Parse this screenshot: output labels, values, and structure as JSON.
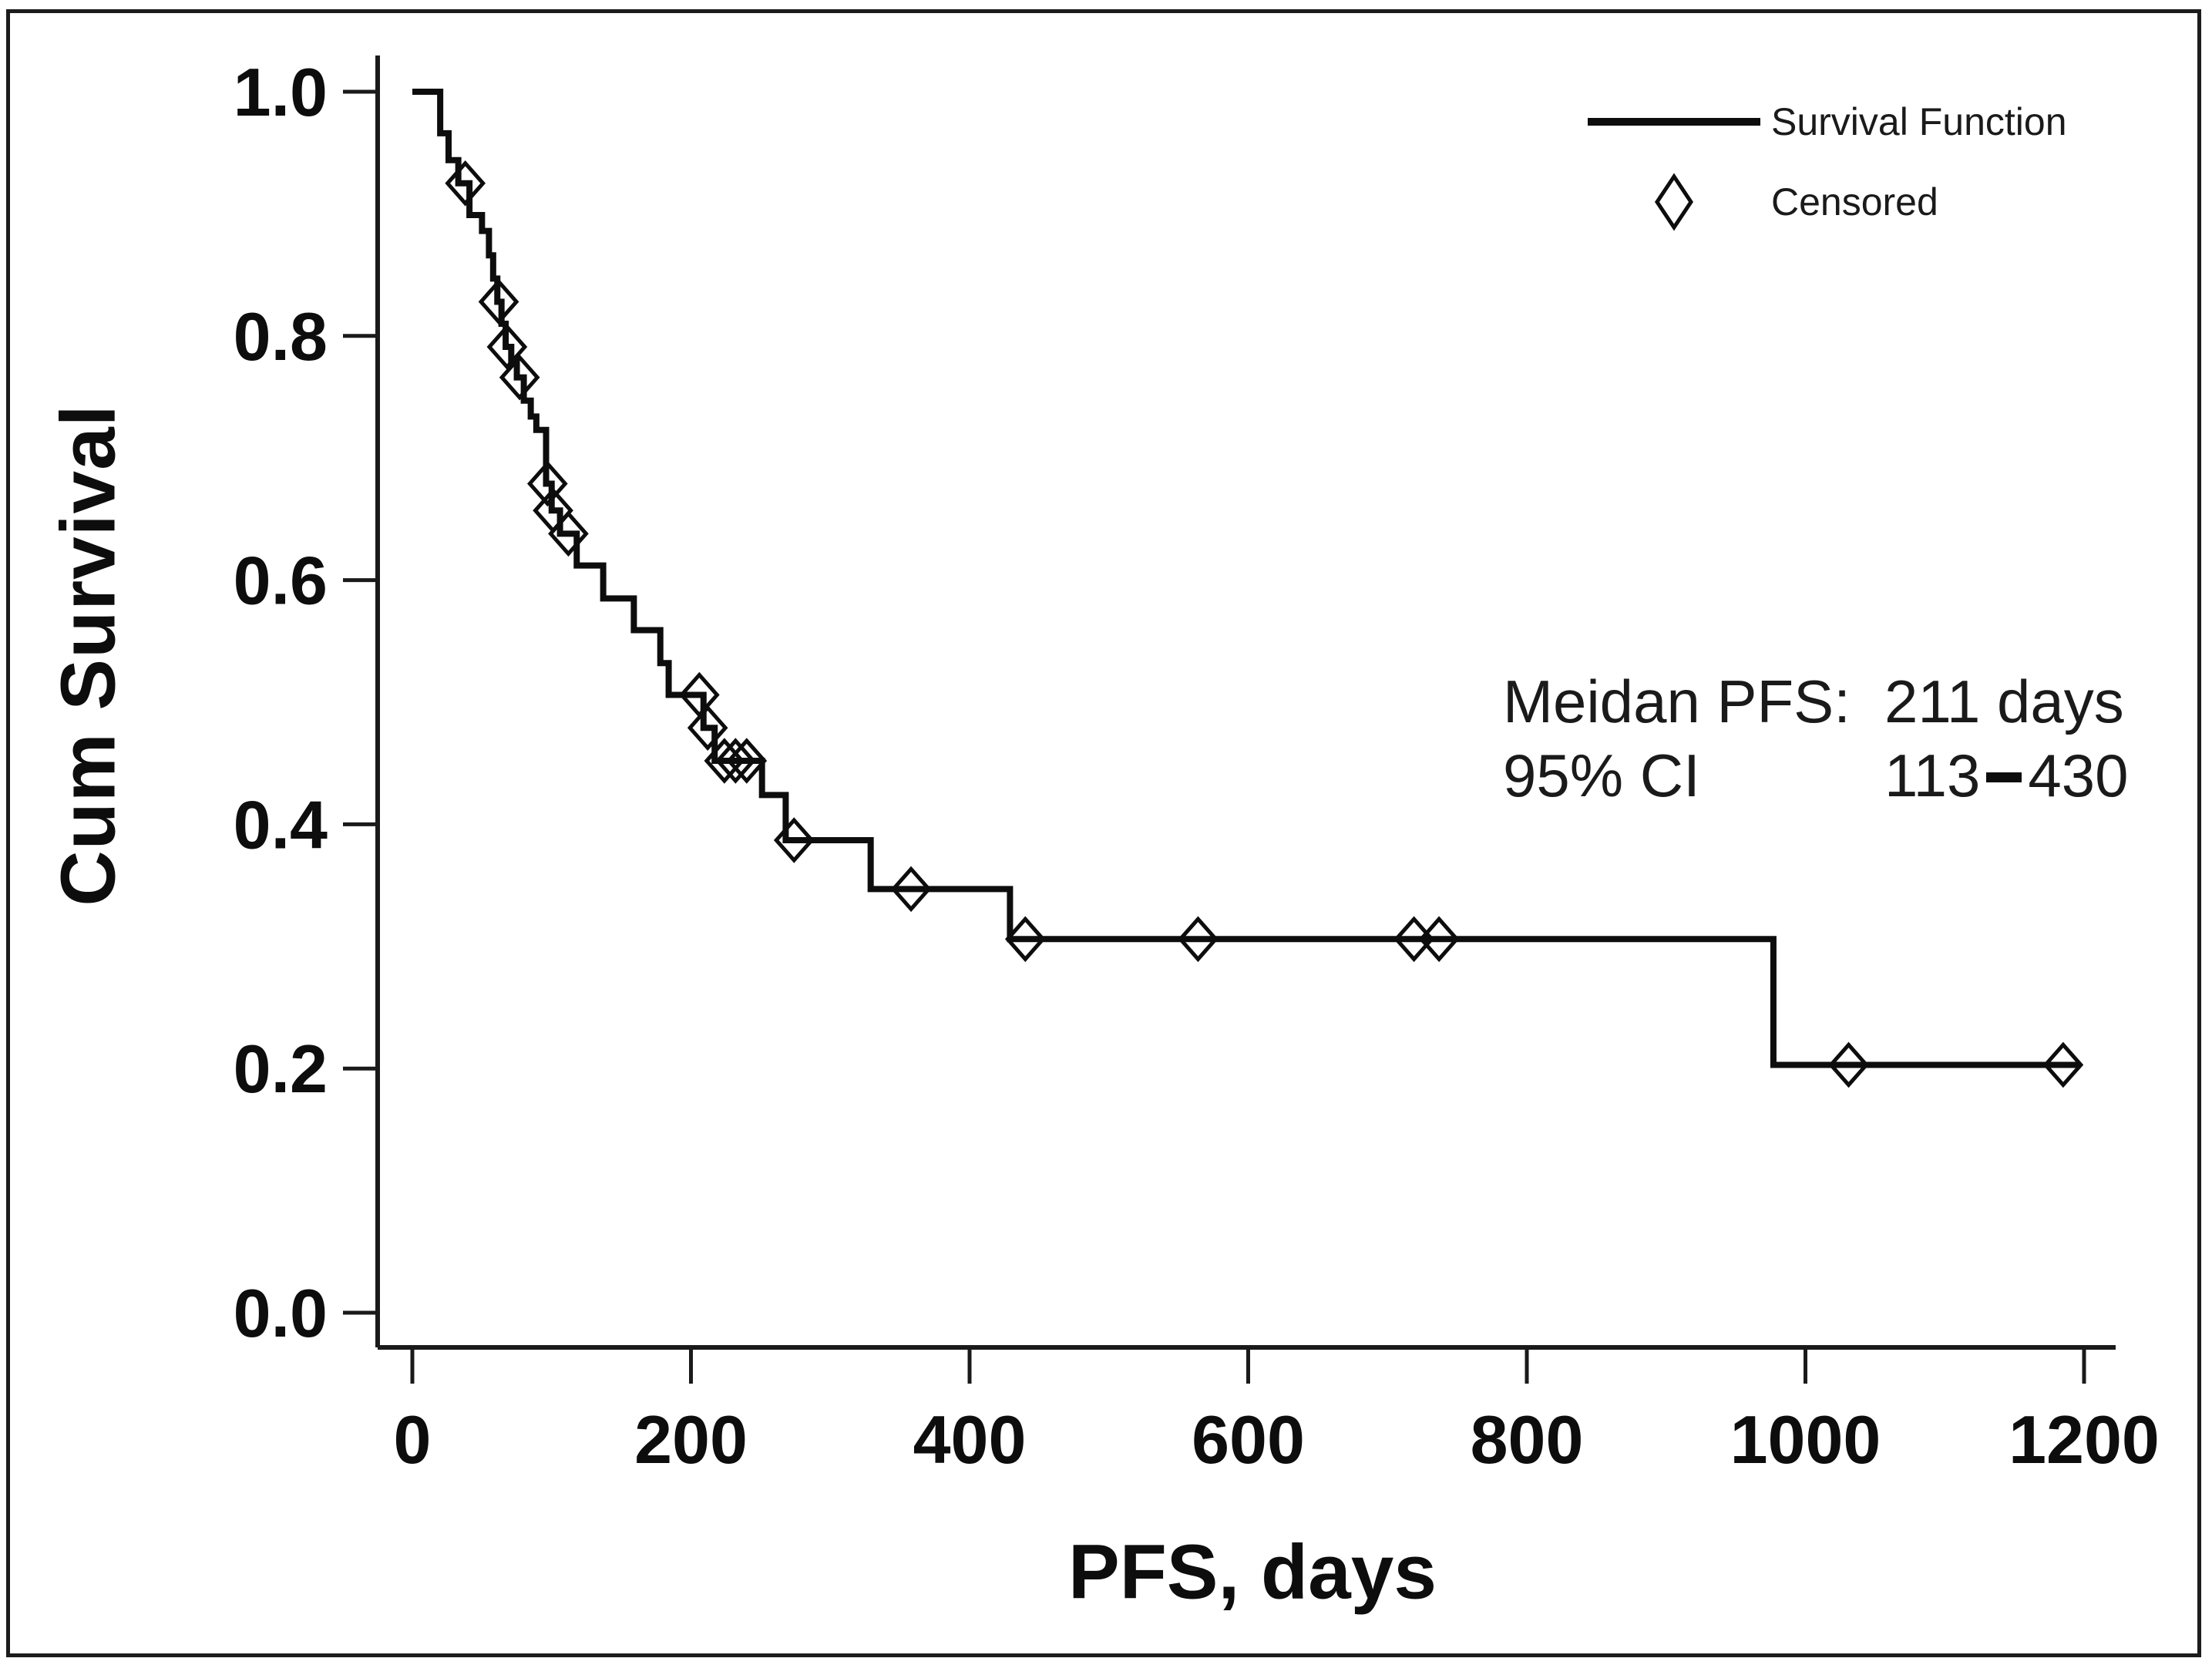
{
  "figure": {
    "ylabel": "Cum Survival",
    "xlabel": "PFS, days",
    "legend": {
      "survival_label": "Survival Function",
      "censored_label": "Censored"
    },
    "annotation": {
      "median_label": "Meidan PFS:",
      "median_value": "211 days",
      "ci_label": "95% CI",
      "ci_low": "113",
      "ci_high": "430"
    }
  },
  "chart_data": {
    "type": "line",
    "subtype": "kaplan-meier-step-function",
    "title": "",
    "xlabel": "PFS, days",
    "ylabel": "Cum Survival",
    "xlim": [
      0,
      1222
    ],
    "ylim": [
      0.0,
      1.0
    ],
    "grid": false,
    "legend_position": "top-right-inside",
    "x_ticks": [
      0,
      200,
      400,
      600,
      800,
      1000,
      1200
    ],
    "y_tick_labels": [
      "0.0",
      "0.2",
      "0.4",
      "0.6",
      "0.8",
      "1.0"
    ],
    "y_tick_values": [
      0.0,
      0.2,
      0.4,
      0.6,
      0.8,
      1.0
    ],
    "legend": [
      {
        "label": "Survival Function",
        "marker": "line"
      },
      {
        "label": "Censored",
        "marker": "open-diamond"
      }
    ],
    "annotations": [
      {
        "label": "Meidan PFS:",
        "value": "211 days"
      },
      {
        "label": "95% CI",
        "value": "113-430"
      }
    ],
    "series": [
      {
        "name": "Survival Function",
        "style": "step-post",
        "color": "#0d0d0d",
        "points_day_survival": [
          [
            0,
            1.0
          ],
          [
            20,
            0.966
          ],
          [
            26,
            0.944
          ],
          [
            33,
            0.925
          ],
          [
            41,
            0.899
          ],
          [
            50,
            0.886
          ],
          [
            55,
            0.866
          ],
          [
            58,
            0.847
          ],
          [
            61,
            0.828
          ],
          [
            64,
            0.81
          ],
          [
            67,
            0.791
          ],
          [
            71,
            0.778
          ],
          [
            75,
            0.766
          ],
          [
            80,
            0.747
          ],
          [
            85,
            0.734
          ],
          [
            89,
            0.723
          ],
          [
            96,
            0.679
          ],
          [
            100,
            0.657
          ],
          [
            106,
            0.638
          ],
          [
            118,
            0.612
          ],
          [
            137,
            0.585
          ],
          [
            159,
            0.559
          ],
          [
            178,
            0.532
          ],
          [
            184,
            0.506
          ],
          [
            209,
            0.479
          ],
          [
            217,
            0.452
          ],
          [
            251,
            0.424
          ],
          [
            268,
            0.387
          ],
          [
            329,
            0.347
          ],
          [
            429,
            0.306
          ],
          [
            977,
            0.203
          ]
        ],
        "curve_end_day": 1196
      }
    ],
    "censored_points_day_survival": [
      [
        38,
        0.925
      ],
      [
        62,
        0.828
      ],
      [
        68,
        0.791
      ],
      [
        77,
        0.766
      ],
      [
        97,
        0.679
      ],
      [
        101,
        0.657
      ],
      [
        112,
        0.638
      ],
      [
        206,
        0.506
      ],
      [
        212,
        0.479
      ],
      [
        224,
        0.452
      ],
      [
        232,
        0.452
      ],
      [
        240,
        0.452
      ],
      [
        274,
        0.387
      ],
      [
        358,
        0.347
      ],
      [
        440,
        0.306
      ],
      [
        564,
        0.306
      ],
      [
        719,
        0.306
      ],
      [
        737,
        0.306
      ],
      [
        1031,
        0.203
      ],
      [
        1185,
        0.203
      ]
    ],
    "median_pfs_days": 211,
    "ci_95": [
      113,
      430
    ],
    "line_color": "#0d0d0d",
    "axis_color": "#1a1a1a"
  }
}
